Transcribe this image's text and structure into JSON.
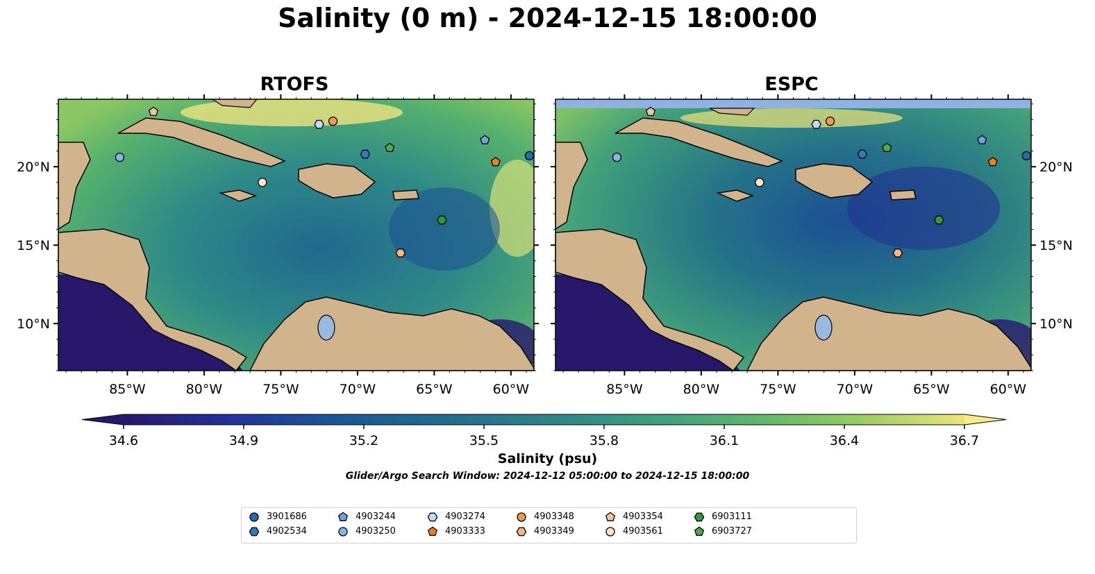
{
  "title": "Salinity (0 m) - 2024-12-15 18:00:00",
  "panels": [
    {
      "title": "RTOFS"
    },
    {
      "title": "ESPC"
    }
  ],
  "axes": {
    "lat_ticks": [
      "10°N",
      "15°N",
      "20°N"
    ],
    "lat_values": [
      10,
      15,
      20
    ],
    "lon_ticks": [
      "85°W",
      "80°W",
      "75°W",
      "70°W",
      "65°W",
      "60°W"
    ],
    "lon_values": [
      -85,
      -80,
      -75,
      -70,
      -65,
      -60
    ],
    "lon_range": [
      -89.5,
      -58.5
    ],
    "lat_range": [
      7.0,
      24.3
    ]
  },
  "colorbar": {
    "label": "Salinity (psu)",
    "ticks": [
      "34.6",
      "34.9",
      "35.2",
      "35.5",
      "35.8",
      "36.1",
      "36.4",
      "36.7"
    ],
    "range": [
      34.6,
      36.7
    ],
    "colormap": "haline-like (dark navy → teal → green → yellow)",
    "extend": "both"
  },
  "search_window": "Glider/Argo Search Window: 2024-12-12 05:00:00 to 2024-12-15 18:00:00",
  "colors": {
    "land": "#d2b48c",
    "lakes": "#9bb8de",
    "low_salinity": "#27186b",
    "mid_salinity": "#2b7f8a",
    "high_salinity": "#f6ec8c"
  },
  "floats": [
    {
      "id": "3901686",
      "marker": "circle",
      "color": "#1f6cb0",
      "lon": -58.8,
      "lat": 20.7
    },
    {
      "id": "4902534",
      "marker": "hexagon",
      "color": "#2e7bbf",
      "lon": -69.5,
      "lat": 20.8
    },
    {
      "id": "4903244",
      "marker": "pentagon",
      "color": "#6ea3dc",
      "lon": -61.7,
      "lat": 21.7
    },
    {
      "id": "4903250",
      "marker": "circle",
      "color": "#87b5e4",
      "lon": -85.5,
      "lat": 20.6
    },
    {
      "id": "4903274",
      "marker": "hexagon",
      "color": "#bfdcf6",
      "lon": -72.5,
      "lat": 22.7
    },
    {
      "id": "4903333",
      "marker": "pentagon",
      "color": "#f07e1a",
      "lon": -61.0,
      "lat": 20.3
    },
    {
      "id": "4903348",
      "marker": "circle",
      "color": "#f29a4e",
      "lon": -71.6,
      "lat": 22.9
    },
    {
      "id": "4903349",
      "marker": "hexagon",
      "color": "#f8b583",
      "lon": -67.2,
      "lat": 14.5
    },
    {
      "id": "4903354",
      "marker": "pentagon",
      "color": "#f6c2a0",
      "lon": -83.3,
      "lat": 23.5
    },
    {
      "id": "4903561",
      "marker": "circle",
      "color": "#fde3cc",
      "lon": -76.2,
      "lat": 19.0
    },
    {
      "id": "6903111",
      "marker": "hexagon",
      "color": "#2e9a3a",
      "lon": -64.5,
      "lat": 16.6
    },
    {
      "id": "6903727",
      "marker": "pentagon",
      "color": "#4aab4f",
      "lon": -67.9,
      "lat": 21.2
    }
  ]
}
